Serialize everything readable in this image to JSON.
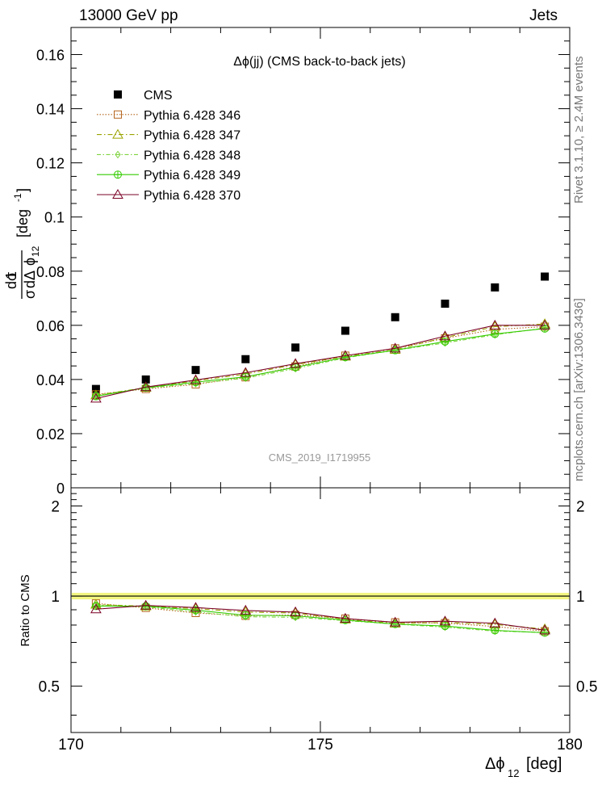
{
  "header": {
    "left": "13000 GeV pp",
    "right": "Jets"
  },
  "side": {
    "rivet": "Rivet 3.1.10, ≥ 2.4M events",
    "mcplots": "mcplots.cern.ch [arXiv:1306.3436]"
  },
  "chart_data": [
    {
      "type": "scatter",
      "title": "Δϕ(jj) (CMS back-to-back jets)",
      "watermark": "CMS_2019_I1719955",
      "ylabel": "1/σ dσ/dΔϕ_12 [deg^-1]",
      "xlim": [
        170,
        180
      ],
      "ylim": [
        0,
        0.17
      ],
      "y_ticks": [
        0,
        0.02,
        0.04,
        0.06,
        0.08,
        0.1,
        0.12,
        0.14,
        0.16
      ],
      "y_tick_labels": [
        "0",
        "0.02",
        "0.04",
        "0.06",
        "0.08",
        "0.1",
        "0.12",
        "0.14",
        "0.16"
      ],
      "x": [
        170.5,
        171.5,
        172.5,
        173.5,
        174.5,
        175.5,
        176.5,
        177.5,
        178.5,
        179.5
      ],
      "legend": "top-left",
      "series": [
        {
          "name": "CMS",
          "color": "#000000",
          "marker": "square-filled",
          "values": [
            0.0365,
            0.04,
            0.0435,
            0.0475,
            0.0518,
            0.058,
            0.063,
            0.068,
            0.074,
            0.078
          ]
        },
        {
          "name": "Pythia 6.428 346",
          "color": "#b5651d",
          "marker": "square-open",
          "dash": "1.5,2",
          "values": [
            0.0345,
            0.0365,
            0.0382,
            0.0408,
            0.0448,
            0.0488,
            0.0515,
            0.0552,
            0.0585,
            0.0595
          ]
        },
        {
          "name": "Pythia 6.428 347",
          "color": "#9aa300",
          "marker": "triangle-open",
          "dash": "6,3,1.5,3",
          "values": [
            0.0342,
            0.037,
            0.0395,
            0.042,
            0.0455,
            0.0485,
            0.051,
            0.0555,
            0.0595,
            0.0605
          ]
        },
        {
          "name": "Pythia 6.428 348",
          "color": "#7fd33f",
          "marker": "diamond-open",
          "dash": "5,2.5,1.5,2.5",
          "values": [
            0.034,
            0.0368,
            0.0385,
            0.0405,
            0.044,
            0.048,
            0.0508,
            0.0535,
            0.0565,
            0.059
          ]
        },
        {
          "name": "Pythia 6.428 349",
          "color": "#33cc00",
          "marker": "circle-cross",
          "dash": "",
          "values": [
            0.0338,
            0.037,
            0.039,
            0.041,
            0.0445,
            0.0482,
            0.0508,
            0.054,
            0.0568,
            0.0588
          ]
        },
        {
          "name": "Pythia 6.428 370",
          "color": "#7a0025",
          "marker": "triangle-open",
          "dash": "",
          "values": [
            0.033,
            0.0372,
            0.0398,
            0.0425,
            0.0458,
            0.0488,
            0.0515,
            0.056,
            0.06,
            0.06
          ]
        }
      ]
    },
    {
      "type": "line",
      "ylabel": "Ratio to CMS",
      "xlabel": "Δϕ_12 [deg]",
      "xlim": [
        170,
        180
      ],
      "ylim": [
        0.35,
        2.3
      ],
      "x_ticks": [
        170,
        175,
        180
      ],
      "x_tick_labels": [
        "170",
        "175",
        "180"
      ],
      "y_ticks": [
        0.5,
        1,
        2
      ],
      "y_tick_labels": [
        "0.5",
        "1",
        "2"
      ],
      "band_color": "#f0f56a",
      "x": [
        170.5,
        171.5,
        172.5,
        173.5,
        174.5,
        175.5,
        176.5,
        177.5,
        178.5,
        179.5
      ],
      "series": [
        {
          "name": "Pythia 6.428 346",
          "color": "#b5651d",
          "marker": "square-open",
          "dash": "1.5,2",
          "values": [
            0.945,
            0.913,
            0.878,
            0.859,
            0.865,
            0.841,
            0.817,
            0.812,
            0.791,
            0.763
          ]
        },
        {
          "name": "Pythia 6.428 347",
          "color": "#9aa300",
          "marker": "triangle-open",
          "dash": "6,3,1.5,3",
          "values": [
            0.937,
            0.925,
            0.908,
            0.884,
            0.878,
            0.836,
            0.81,
            0.816,
            0.804,
            0.776
          ]
        },
        {
          "name": "Pythia 6.428 348",
          "color": "#7fd33f",
          "marker": "diamond-open",
          "dash": "5,2.5,1.5,2.5",
          "values": [
            0.932,
            0.92,
            0.885,
            0.853,
            0.849,
            0.828,
            0.806,
            0.787,
            0.764,
            0.756
          ]
        },
        {
          "name": "Pythia 6.428 349",
          "color": "#33cc00",
          "marker": "circle-cross",
          "dash": "",
          "values": [
            0.926,
            0.925,
            0.897,
            0.863,
            0.859,
            0.831,
            0.806,
            0.794,
            0.768,
            0.754
          ]
        },
        {
          "name": "Pythia 6.428 370",
          "color": "#7a0025",
          "marker": "triangle-open",
          "dash": "",
          "values": [
            0.904,
            0.93,
            0.915,
            0.895,
            0.884,
            0.841,
            0.817,
            0.824,
            0.811,
            0.769
          ]
        }
      ]
    }
  ]
}
